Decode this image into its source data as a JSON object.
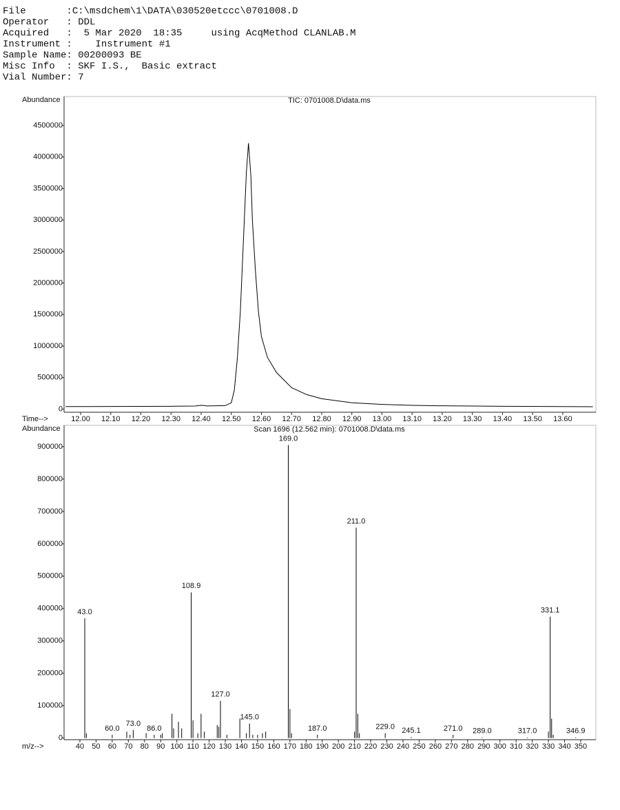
{
  "header": {
    "lines": [
      "File       :C:\\msdchem\\1\\DATA\\030520etccc\\0701008.D",
      "Operator   : DDL",
      "Acquired   :  5 Mar 2020  18:35     using AcqMethod CLANLAB.M",
      "Instrument :    Instrument #1",
      "Sample Name: 00200093 BE",
      "Misc Info  : SKF I.S.,  Basic extract",
      "Vial Number: 7"
    ]
  },
  "chart_data": [
    {
      "type": "line",
      "title": "TIC: 0701008.D\\data.ms",
      "y_label": "Abundance",
      "x_label": "Time-->",
      "color": "#000000",
      "x": [
        11.95,
        12.0,
        12.1,
        12.2,
        12.3,
        12.38,
        12.4,
        12.42,
        12.48,
        12.5,
        12.51,
        12.52,
        12.53,
        12.54,
        12.55,
        12.557,
        12.565,
        12.57,
        12.58,
        12.59,
        12.6,
        12.62,
        12.65,
        12.7,
        12.75,
        12.8,
        12.9,
        13.0,
        13.1,
        13.2,
        13.4,
        13.6,
        13.7
      ],
      "values": [
        40000,
        40000,
        42000,
        43000,
        45000,
        48000,
        60000,
        50000,
        55000,
        100000,
        300000,
        800000,
        1550000,
        2650000,
        3750000,
        4220000,
        3700000,
        3000000,
        2200000,
        1550000,
        1150000,
        820000,
        580000,
        340000,
        230000,
        165000,
        100000,
        75000,
        60000,
        52000,
        45000,
        40000,
        38000
      ],
      "xlim": [
        11.945,
        13.71
      ],
      "ylim": [
        -50000,
        4960000
      ],
      "xticks": [
        {
          "value": 12,
          "label": "12.00"
        },
        {
          "value": 12.1,
          "label": "12.10"
        },
        {
          "value": 12.2,
          "label": "12.20"
        },
        {
          "value": 12.3,
          "label": "12.30"
        },
        {
          "value": 12.4,
          "label": "12.40"
        },
        {
          "value": 12.5,
          "label": "12.50"
        },
        {
          "value": 12.6,
          "label": "12.60"
        },
        {
          "value": 12.7,
          "label": "12.70"
        },
        {
          "value": 12.8,
          "label": "12.80"
        },
        {
          "value": 12.9,
          "label": "12.90"
        },
        {
          "value": 13,
          "label": "13.00"
        },
        {
          "value": 13.1,
          "label": "13.10"
        },
        {
          "value": 13.2,
          "label": "13.20"
        },
        {
          "value": 13.3,
          "label": "13.30"
        },
        {
          "value": 13.4,
          "label": "13.40"
        },
        {
          "value": 13.5,
          "label": "13.50"
        },
        {
          "value": 13.6,
          "label": "13.60"
        }
      ],
      "yticks": [
        0,
        500000,
        1000000,
        1500000,
        2000000,
        2500000,
        3000000,
        3500000,
        4000000,
        4500000
      ]
    },
    {
      "type": "bar",
      "title": "Scan 1696 (12.562 min): 0701008.D\\data.ms",
      "y_label": "Abundance",
      "x_label": "m/z-->",
      "color": "#000000",
      "x": [
        43,
        44,
        60,
        69,
        71,
        73,
        81,
        86,
        90,
        91,
        97,
        98,
        101,
        103,
        108.9,
        110,
        113,
        115,
        117,
        125,
        126,
        127,
        131,
        139,
        143,
        145,
        147,
        150,
        153,
        155,
        169,
        170,
        171,
        187,
        210,
        211,
        212,
        213,
        229,
        245.1,
        271,
        289,
        317,
        330,
        331.1,
        332,
        333,
        346.9
      ],
      "values": [
        370000,
        15000,
        10000,
        20000,
        10000,
        25000,
        15000,
        10000,
        10000,
        15000,
        75000,
        30000,
        50000,
        30000,
        450000,
        55000,
        15000,
        75000,
        20000,
        40000,
        35000,
        115000,
        10000,
        60000,
        15000,
        45000,
        10000,
        10000,
        15000,
        20000,
        905000,
        90000,
        15000,
        10000,
        20000,
        650000,
        75000,
        15000,
        15000,
        3000,
        10000,
        2000,
        2000,
        20000,
        375000,
        60000,
        10000,
        2000
      ],
      "x_labels": [
        "43.0",
        null,
        "60.0",
        null,
        null,
        "73.0",
        null,
        "86.0",
        null,
        null,
        null,
        null,
        null,
        null,
        "108.9",
        null,
        null,
        null,
        null,
        null,
        null,
        "127.0",
        null,
        null,
        null,
        "145.0",
        null,
        null,
        null,
        null,
        "169.0",
        null,
        null,
        "187.0",
        null,
        "211.0",
        null,
        null,
        "229.0",
        "245.1",
        "271.0",
        "289.0",
        "317.0",
        null,
        "331.1",
        null,
        null,
        "346.9"
      ],
      "xlim": [
        30.2,
        359.4
      ],
      "ylim": [
        -5000,
        966000
      ],
      "xticks": [
        40,
        50,
        60,
        70,
        80,
        90,
        100,
        110,
        120,
        130,
        140,
        150,
        160,
        170,
        180,
        190,
        200,
        210,
        220,
        230,
        240,
        250,
        260,
        270,
        280,
        290,
        300,
        310,
        320,
        330,
        340,
        350
      ],
      "yticks": [
        0,
        100000,
        200000,
        300000,
        400000,
        500000,
        600000,
        700000,
        800000,
        900000
      ]
    }
  ]
}
